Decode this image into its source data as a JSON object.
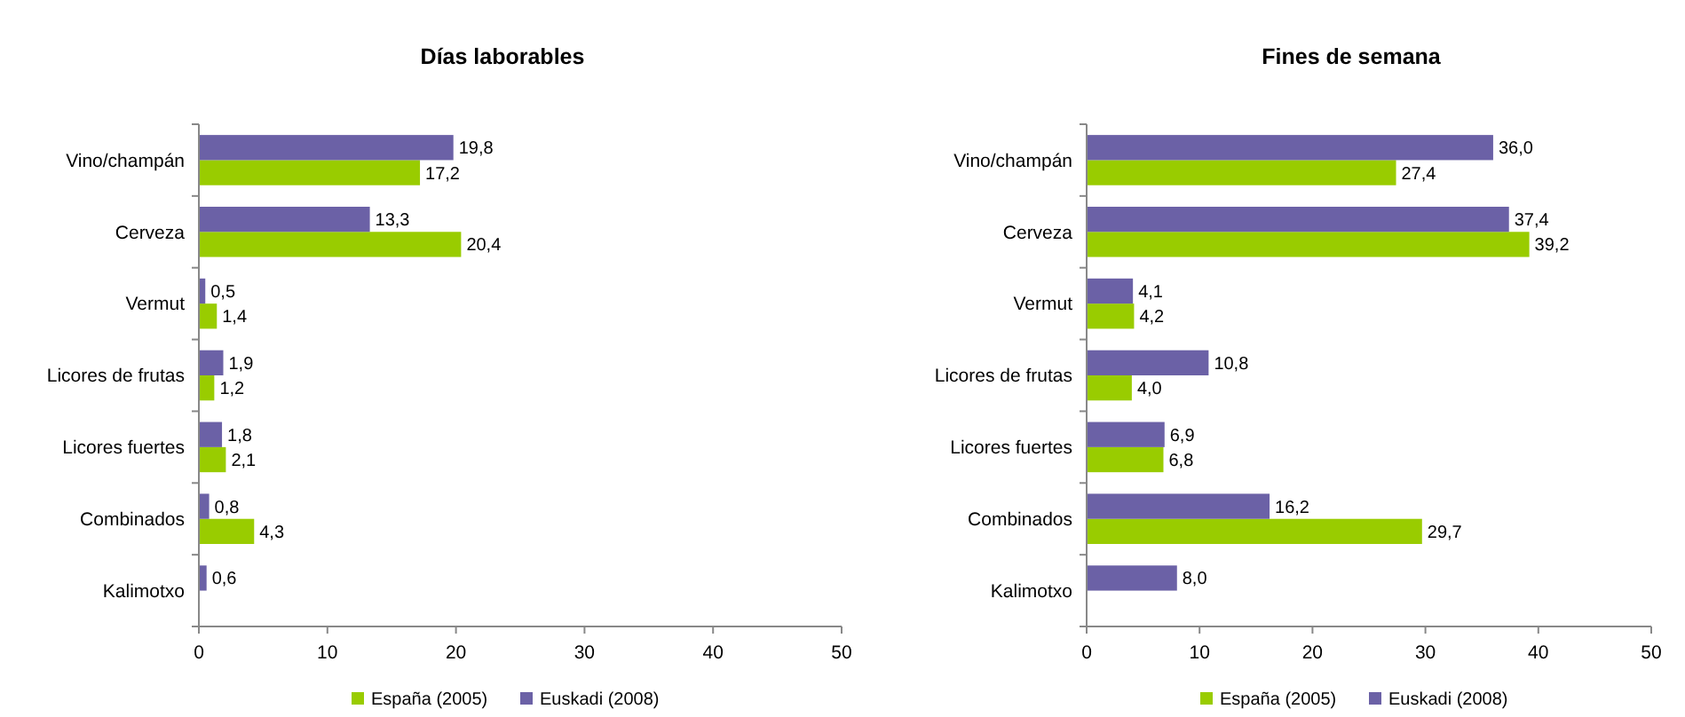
{
  "chart_data": [
    {
      "type": "bar",
      "orientation": "horizontal",
      "title": "Días laborables",
      "categories": [
        "Vino/champán",
        "Cerveza",
        "Vermut",
        "Licores de frutas",
        "Licores fuertes",
        "Combinados",
        "Kalimotxo"
      ],
      "series": [
        {
          "name": "España (2005)",
          "color": "#99cc00",
          "values": [
            17.2,
            20.4,
            1.4,
            1.2,
            2.1,
            4.3,
            null
          ],
          "value_labels": [
            "17,2",
            "20,4",
            "1,4",
            "1,2",
            "2,1",
            "4,3",
            null
          ]
        },
        {
          "name": "Euskadi (2008)",
          "color": "#6b61a6",
          "values": [
            19.8,
            13.3,
            0.5,
            1.9,
            1.8,
            0.8,
            0.6
          ],
          "value_labels": [
            "19,8",
            "13,3",
            "0,5",
            "1,9",
            "1,8",
            "0,8",
            "0,6"
          ]
        }
      ],
      "xlim": [
        0,
        50
      ],
      "xticks": [
        0,
        10,
        20,
        30,
        40,
        50
      ],
      "legend": "bottom",
      "grid": false
    },
    {
      "type": "bar",
      "orientation": "horizontal",
      "title": "Fines de semana",
      "categories": [
        "Vino/champán",
        "Cerveza",
        "Vermut",
        "Licores de frutas",
        "Licores fuertes",
        "Combinados",
        "Kalimotxo"
      ],
      "series": [
        {
          "name": "España (2005)",
          "color": "#99cc00",
          "values": [
            27.4,
            39.2,
            4.2,
            4.0,
            6.8,
            29.7,
            null
          ],
          "value_labels": [
            "27,4",
            "39,2",
            "4,2",
            "4,0",
            "6,8",
            "29,7",
            null
          ]
        },
        {
          "name": "Euskadi (2008)",
          "color": "#6b61a6",
          "values": [
            36.0,
            37.4,
            4.1,
            10.8,
            6.9,
            16.2,
            8.0
          ],
          "value_labels": [
            "36,0",
            "37,4",
            "4,1",
            "10,8",
            "6,9",
            "16,2",
            "8,0"
          ]
        }
      ],
      "xlim": [
        0,
        50
      ],
      "xticks": [
        0,
        10,
        20,
        30,
        40,
        50
      ],
      "legend": "bottom",
      "grid": false
    }
  ]
}
